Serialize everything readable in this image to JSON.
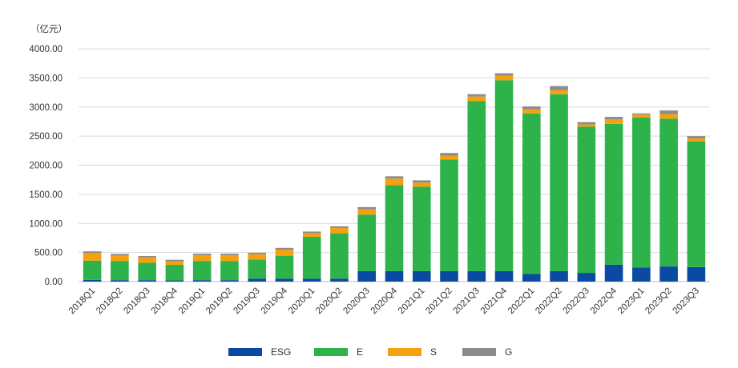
{
  "chart_data": {
    "type": "bar",
    "stacked": true,
    "unit_label": "（亿元）",
    "ylim": [
      0,
      4000
    ],
    "yticks": [
      "0.00",
      "500.00",
      "1000.00",
      "1500.00",
      "2000.00",
      "2500.00",
      "3000.00",
      "3500.00",
      "4000.00"
    ],
    "grid": true,
    "legend_position": "bottom",
    "categories": [
      "2018Q1",
      "2018Q2",
      "2018Q3",
      "2018Q4",
      "2019Q1",
      "2019Q2",
      "2019Q3",
      "2019Q4",
      "2020Q1",
      "2020Q2",
      "2020Q3",
      "2020Q4",
      "2021Q1",
      "2021Q2",
      "2021Q3",
      "2021Q4",
      "2022Q1",
      "2022Q2",
      "2022Q3",
      "2022Q4",
      "2023Q1",
      "2023Q2",
      "2023Q3"
    ],
    "series": [
      {
        "name": "ESG",
        "color": "#0b4aa2",
        "values": [
          30,
          25,
          25,
          20,
          25,
          25,
          50,
          50,
          50,
          50,
          180,
          180,
          180,
          180,
          180,
          180,
          130,
          180,
          150,
          290,
          240,
          260,
          250
        ]
      },
      {
        "name": "E",
        "color": "#2db34a",
        "values": [
          330,
          330,
          300,
          270,
          330,
          330,
          330,
          390,
          720,
          780,
          970,
          1480,
          1450,
          1920,
          2920,
          3280,
          2760,
          3040,
          2510,
          2420,
          2580,
          2540,
          2160
        ]
      },
      {
        "name": "S",
        "color": "#f5a00f",
        "values": [
          130,
          90,
          90,
          60,
          100,
          100,
          90,
          110,
          60,
          90,
          90,
          110,
          70,
          60,
          80,
          80,
          70,
          70,
          40,
          80,
          50,
          80,
          50
        ]
      },
      {
        "name": "G",
        "color": "#8c8c8c",
        "values": [
          30,
          30,
          25,
          25,
          25,
          25,
          25,
          30,
          30,
          30,
          40,
          40,
          40,
          50,
          40,
          40,
          50,
          70,
          40,
          40,
          20,
          60,
          40
        ]
      }
    ]
  }
}
